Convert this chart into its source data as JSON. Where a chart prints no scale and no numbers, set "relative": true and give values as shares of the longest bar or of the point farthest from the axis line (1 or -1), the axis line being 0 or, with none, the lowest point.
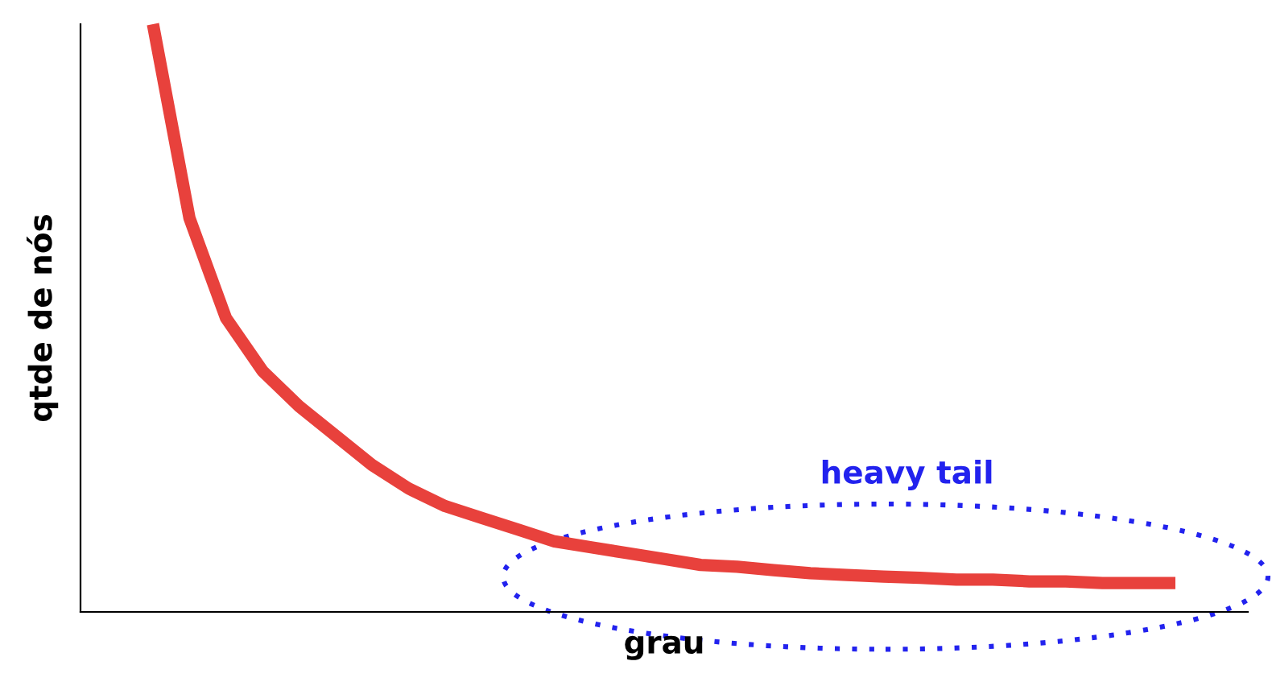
{
  "chart_data": {
    "type": "line",
    "relative": true,
    "xlabel": "grau",
    "ylabel": "qtde de nós",
    "annotations": [
      "heavy tail"
    ],
    "categories": [
      null,
      null,
      null,
      null,
      null,
      null,
      null,
      null,
      null,
      null,
      null,
      null,
      null,
      null,
      null,
      null,
      null,
      null,
      null,
      null,
      null,
      null,
      null,
      null,
      null,
      null,
      null,
      null,
      null
    ],
    "series": [
      {
        "color": "#e8413c",
        "values": [
          1.0,
          0.67,
          0.5,
          0.41,
          0.35,
          0.3,
          0.25,
          0.21,
          0.18,
          0.16,
          0.14,
          0.12,
          0.11,
          0.1,
          0.09,
          0.08,
          0.077,
          0.071,
          0.066,
          0.063,
          0.06,
          0.058,
          0.055,
          0.055,
          0.052,
          0.052,
          0.049,
          0.049,
          0.049
        ]
      }
    ],
    "legend": false,
    "marker": "none",
    "line_style": "solid"
  }
}
